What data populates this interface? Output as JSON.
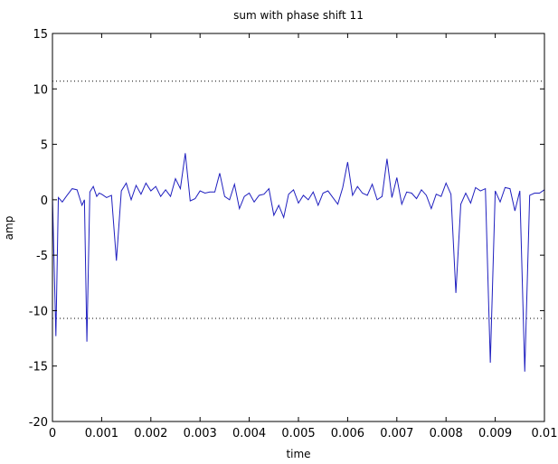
{
  "chart_data": {
    "type": "line",
    "title": "sum with phase shift 11",
    "xlabel": "time",
    "ylabel": "amp",
    "xlim": [
      0,
      0.01
    ],
    "ylim": [
      -20,
      15
    ],
    "x_ticks": [
      0,
      0.001,
      0.002,
      0.003,
      0.004,
      0.005,
      0.006,
      0.007,
      0.008,
      0.009,
      0.01
    ],
    "x_tick_labels": [
      "0",
      "0.001",
      "0.002",
      "0.003",
      "0.004",
      "0.005",
      "0.006",
      "0.007",
      "0.008",
      "0.009",
      "0.01"
    ],
    "y_ticks": [
      -20,
      -15,
      -10,
      -5,
      0,
      5,
      10,
      15
    ],
    "y_tick_labels": [
      "-20",
      "-15",
      "-10",
      "-5",
      "0",
      "5",
      "10",
      "15"
    ],
    "grid": false,
    "colors": {
      "series": "#1f1fbf",
      "reference": "#000000"
    },
    "reference_lines": [
      {
        "y": 10.7,
        "style": "dotted"
      },
      {
        "y": -10.7,
        "style": "dotted"
      }
    ],
    "series": [
      {
        "x": [
          0,
          7e-05,
          0.00012,
          0.0002,
          0.00028,
          0.0004,
          0.0005,
          0.0006,
          0.00065,
          0.0007,
          0.00076,
          0.00083,
          0.0009,
          0.00095,
          0.001,
          0.0011,
          0.0012,
          0.0013,
          0.0014,
          0.0015,
          0.0016,
          0.0017,
          0.0018,
          0.0019,
          0.002,
          0.0021,
          0.0022,
          0.0023,
          0.0024,
          0.0025,
          0.0026,
          0.0027,
          0.0028,
          0.0029,
          0.003,
          0.0031,
          0.0032,
          0.0033,
          0.0034,
          0.0035,
          0.0036,
          0.0037,
          0.0038,
          0.0039,
          0.004,
          0.0041,
          0.0042,
          0.0043,
          0.0044,
          0.0045,
          0.0046,
          0.0047,
          0.0048,
          0.0049,
          0.005,
          0.0051,
          0.0052,
          0.0053,
          0.0054,
          0.0055,
          0.0056,
          0.0057,
          0.0058,
          0.0059,
          0.006,
          0.0061,
          0.0062,
          0.0063,
          0.0064,
          0.0065,
          0.0066,
          0.0067,
          0.0068,
          0.0069,
          0.007,
          0.0071,
          0.0072,
          0.0073,
          0.0074,
          0.0075,
          0.0076,
          0.0077,
          0.0078,
          0.0079,
          0.008,
          0.0081,
          0.0082,
          0.0083,
          0.0084,
          0.0085,
          0.0086,
          0.0087,
          0.0088,
          0.0089,
          0.009,
          0.0091,
          0.0092,
          0.0093,
          0.0094,
          0.0095,
          0.0096,
          0.0097,
          0.0098,
          0.0099,
          0.01
        ],
        "y": [
          0.3,
          -12.3,
          0.2,
          -0.2,
          0.3,
          1.0,
          0.9,
          -0.5,
          0.0,
          -12.8,
          0.7,
          1.2,
          0.3,
          0.6,
          0.5,
          0.2,
          0.4,
          -5.5,
          0.8,
          1.5,
          0.0,
          1.3,
          0.5,
          1.5,
          0.8,
          1.2,
          0.3,
          0.9,
          0.3,
          1.9,
          1.0,
          4.2,
          -0.1,
          0.1,
          0.8,
          0.6,
          0.7,
          0.7,
          2.4,
          0.3,
          0.0,
          1.4,
          -0.8,
          0.3,
          0.6,
          -0.2,
          0.4,
          0.5,
          1.0,
          -1.4,
          -0.5,
          -1.6,
          0.5,
          0.9,
          -0.3,
          0.4,
          0.0,
          0.7,
          -0.5,
          0.6,
          0.8,
          0.2,
          -0.4,
          1.1,
          3.4,
          0.4,
          1.2,
          0.6,
          0.4,
          1.4,
          0.0,
          0.3,
          3.7,
          0.2,
          2.0,
          -0.4,
          0.7,
          0.6,
          0.1,
          0.9,
          0.4,
          -0.8,
          0.5,
          0.3,
          1.5,
          0.5,
          -8.4,
          -0.4,
          0.6,
          -0.3,
          1.1,
          0.8,
          1.0,
          -14.7,
          0.8,
          -0.2,
          1.1,
          1.0,
          -1.0,
          0.8,
          -15.5,
          0.4,
          0.6,
          0.6,
          0.9
        ]
      }
    ]
  }
}
